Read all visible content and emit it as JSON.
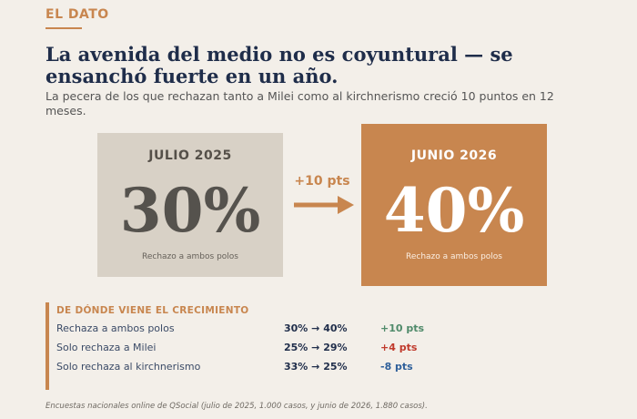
{
  "kicker": "EL DATO",
  "headline": "La avenida del medio no es coyuntural — se ensanchó fuerte en un año.",
  "subhead": "La pecera de los que rechazan tanto a Milei como al kirchnerismo creció 10 puntos en 12 meses.",
  "comparison": {
    "before": {
      "label": "JULIO 2025",
      "value": "30%",
      "caption": "Rechazo a ambos polos"
    },
    "delta": "+10 pts",
    "after": {
      "label": "JUNIO 2026",
      "value": "40%",
      "caption": "Rechazo a ambos polos"
    }
  },
  "growth": {
    "title": "DE DÓNDE VIENE EL CRECIMIENTO",
    "rows": [
      {
        "label": "Rechaza a ambos polos",
        "change": "30% → 40%",
        "delta": "+10 pts",
        "delta_color": "#4f8a6a"
      },
      {
        "label": "Solo rechaza a Milei",
        "change": "25% → 29%",
        "delta": "+4 pts",
        "delta_color": "#c0392b"
      },
      {
        "label": "Solo rechaza al kirchnerismo",
        "change": "33% → 25%",
        "delta": "-8 pts",
        "delta_color": "#2e5f9a"
      }
    ]
  },
  "source": "Encuestas nacionales online de QSocial (julio de 2025, 1.000 casos, y junio de 2026, 1.880 casos).",
  "colors": {
    "accent": "#c8864f",
    "navy": "#1f2d4a",
    "background": "#f3efe9",
    "card_before": "#d8d1c6"
  }
}
